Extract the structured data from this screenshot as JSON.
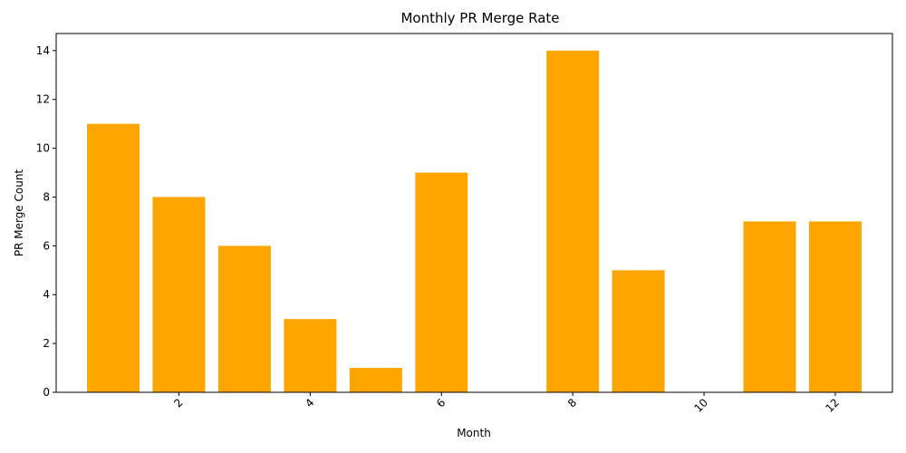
{
  "chart_data": {
    "type": "bar",
    "title": "Monthly PR Merge Rate",
    "xlabel": "Month",
    "ylabel": "PR Merge Count",
    "x": [
      1,
      2,
      3,
      4,
      5,
      6,
      7,
      8,
      9,
      10,
      11,
      12
    ],
    "values": [
      11,
      8,
      6,
      3,
      1,
      9,
      0,
      14,
      5,
      0,
      7,
      7
    ],
    "xlim": [
      0.13,
      12.87
    ],
    "ylim": [
      0,
      14.7
    ],
    "xticks": [
      2,
      4,
      6,
      8,
      10,
      12
    ],
    "xtick_rotation": 45,
    "yticks": [
      0,
      2,
      4,
      6,
      8,
      10,
      12,
      14
    ],
    "bar_color": "#ffa500",
    "grid": false,
    "legend": "none"
  }
}
